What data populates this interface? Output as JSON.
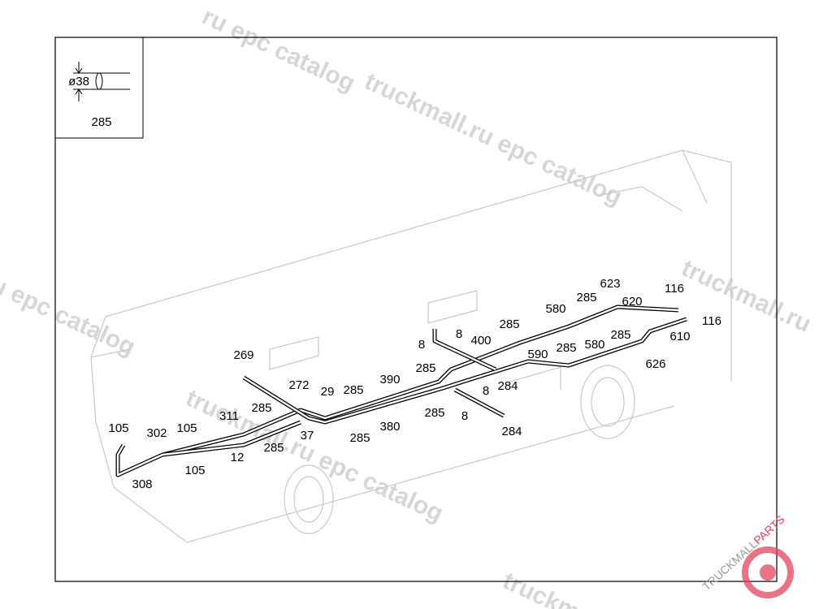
{
  "inset": {
    "diameter": "ø38",
    "label": "285"
  },
  "callouts": [
    "269",
    "272",
    "29",
    "285",
    "311",
    "105",
    "302",
    "105",
    "37",
    "285",
    "12",
    "105",
    "308",
    "285",
    "390",
    "285",
    "380",
    "285",
    "285",
    "8",
    "8",
    "400",
    "285",
    "590",
    "285",
    "580",
    "580",
    "285",
    "623",
    "620",
    "116",
    "116",
    "610",
    "285",
    "626",
    "284",
    "8",
    "8",
    "284"
  ],
  "watermarks": [
    "ru epc catalog",
    "truckmall.ru epc catalog",
    "truckmall.ru",
    "u epc catalog",
    "truckmall.ru epc catalog",
    "truckmall"
  ],
  "logo": {
    "part1": "TRUCKMALL",
    "part2": "PARTS"
  }
}
